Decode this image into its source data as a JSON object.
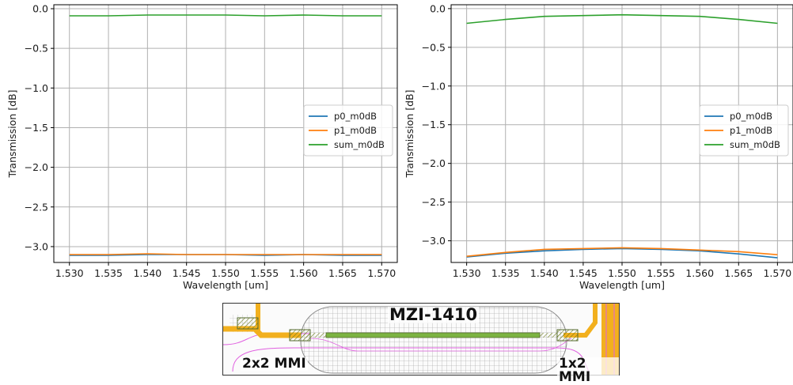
{
  "chart_data": [
    {
      "type": "line",
      "xlabel": "Wavelength [um]",
      "ylabel": "Transmission [dB]",
      "xlim": [
        1.528,
        1.572
      ],
      "ylim": [
        -3.2,
        0.05
      ],
      "xticks": [
        1.53,
        1.535,
        1.54,
        1.545,
        1.55,
        1.555,
        1.56,
        1.565,
        1.57
      ],
      "xtick_labels": [
        "1.530",
        "1.535",
        "1.540",
        "1.545",
        "1.550",
        "1.555",
        "1.560",
        "1.565",
        "1.570"
      ],
      "yticks": [
        0.0,
        -0.5,
        -1.0,
        -1.5,
        -2.0,
        -2.5,
        -3.0
      ],
      "ytick_labels": [
        "0.0",
        "−0.5",
        "−1.0",
        "−1.5",
        "−2.0",
        "−2.5",
        "−3.0"
      ],
      "grid": true,
      "legend_position": "center-right",
      "x": [
        1.53,
        1.535,
        1.54,
        1.545,
        1.55,
        1.555,
        1.56,
        1.565,
        1.57
      ],
      "series": [
        {
          "name": "p0_m0dB",
          "color": "#1f77b4",
          "values": [
            -3.11,
            -3.11,
            -3.1,
            -3.1,
            -3.1,
            -3.11,
            -3.1,
            -3.11,
            -3.11
          ]
        },
        {
          "name": "p1_m0dB",
          "color": "#ff7f0e",
          "values": [
            -3.1,
            -3.1,
            -3.09,
            -3.1,
            -3.1,
            -3.1,
            -3.1,
            -3.1,
            -3.1
          ]
        },
        {
          "name": "sum_m0dB",
          "color": "#2ca02c",
          "values": [
            -0.09,
            -0.09,
            -0.08,
            -0.08,
            -0.08,
            -0.09,
            -0.08,
            -0.09,
            -0.09
          ]
        }
      ]
    },
    {
      "type": "line",
      "xlabel": "Wavelength [um]",
      "ylabel": "Transmission [dB]",
      "xlim": [
        1.528,
        1.572
      ],
      "ylim": [
        -3.28,
        0.05
      ],
      "xticks": [
        1.53,
        1.535,
        1.54,
        1.545,
        1.55,
        1.555,
        1.56,
        1.565,
        1.57
      ],
      "xtick_labels": [
        "1.530",
        "1.535",
        "1.540",
        "1.545",
        "1.550",
        "1.555",
        "1.560",
        "1.565",
        "1.570"
      ],
      "yticks": [
        0.0,
        -0.5,
        -1.0,
        -1.5,
        -2.0,
        -2.5,
        -3.0
      ],
      "ytick_labels": [
        "0.0",
        "−0.5",
        "−1.0",
        "−1.5",
        "−2.0",
        "−2.5",
        "−3.0"
      ],
      "grid": true,
      "legend_position": "center-right",
      "x": [
        1.53,
        1.535,
        1.54,
        1.545,
        1.55,
        1.555,
        1.56,
        1.565,
        1.57
      ],
      "series": [
        {
          "name": "p0_m0dB",
          "color": "#1f77b4",
          "values": [
            -3.21,
            -3.16,
            -3.13,
            -3.11,
            -3.1,
            -3.11,
            -3.13,
            -3.17,
            -3.22
          ]
        },
        {
          "name": "p1_m0dB",
          "color": "#ff7f0e",
          "values": [
            -3.2,
            -3.15,
            -3.11,
            -3.1,
            -3.09,
            -3.1,
            -3.12,
            -3.14,
            -3.18
          ]
        },
        {
          "name": "sum_m0dB",
          "color": "#2ca02c",
          "values": [
            -0.19,
            -0.14,
            -0.1,
            -0.09,
            -0.08,
            -0.09,
            -0.1,
            -0.14,
            -0.19
          ]
        }
      ]
    }
  ],
  "layout_image": {
    "title": "MZI-1410",
    "left_label": "2x2 MMI",
    "right_label": "1x2 MMI",
    "colors": {
      "waveguide": "#f2b01e",
      "outline": "#e060e0",
      "grid": "#9a9a9a",
      "arm": "#7cb342",
      "pad": "#8a9a2a"
    }
  }
}
